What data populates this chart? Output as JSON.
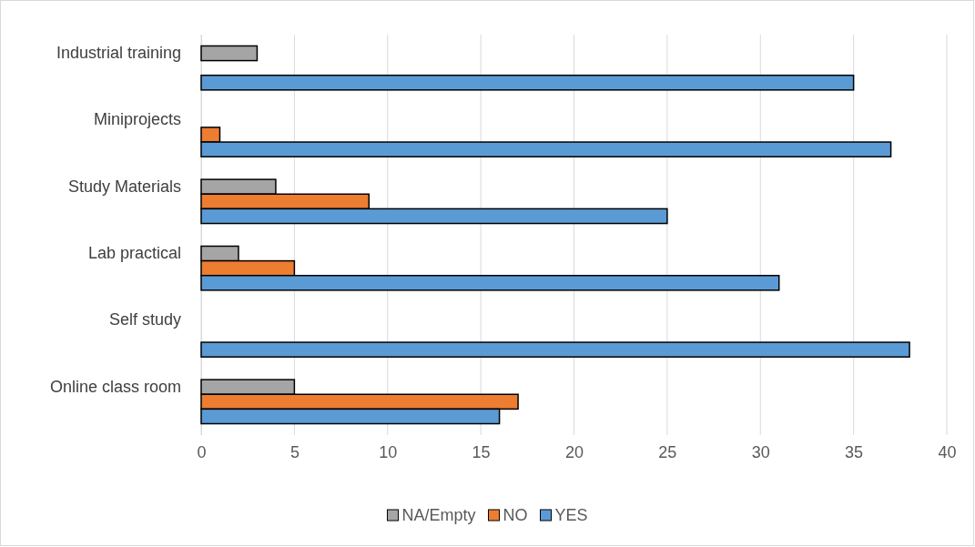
{
  "chart_data": {
    "type": "bar",
    "orientation": "horizontal",
    "categories": [
      "Industrial training",
      "Miniprojects",
      "Study Materials",
      "Lab practical",
      "Self study",
      "Online class room"
    ],
    "series": [
      {
        "name": "NA/Empty",
        "color": "#a5a5a5",
        "values": [
          3,
          null,
          4,
          2,
          null,
          5
        ]
      },
      {
        "name": "NO",
        "color": "#ed7d31",
        "values": [
          null,
          1,
          9,
          5,
          null,
          17
        ]
      },
      {
        "name": "YES",
        "color": "#5b9bd5",
        "values": [
          35,
          37,
          25,
          31,
          38,
          16
        ]
      }
    ],
    "xlim": [
      0,
      40
    ],
    "xticks": [
      0,
      5,
      10,
      15,
      20,
      25,
      30,
      35,
      40
    ],
    "grid": "x",
    "legend": "bottom"
  }
}
